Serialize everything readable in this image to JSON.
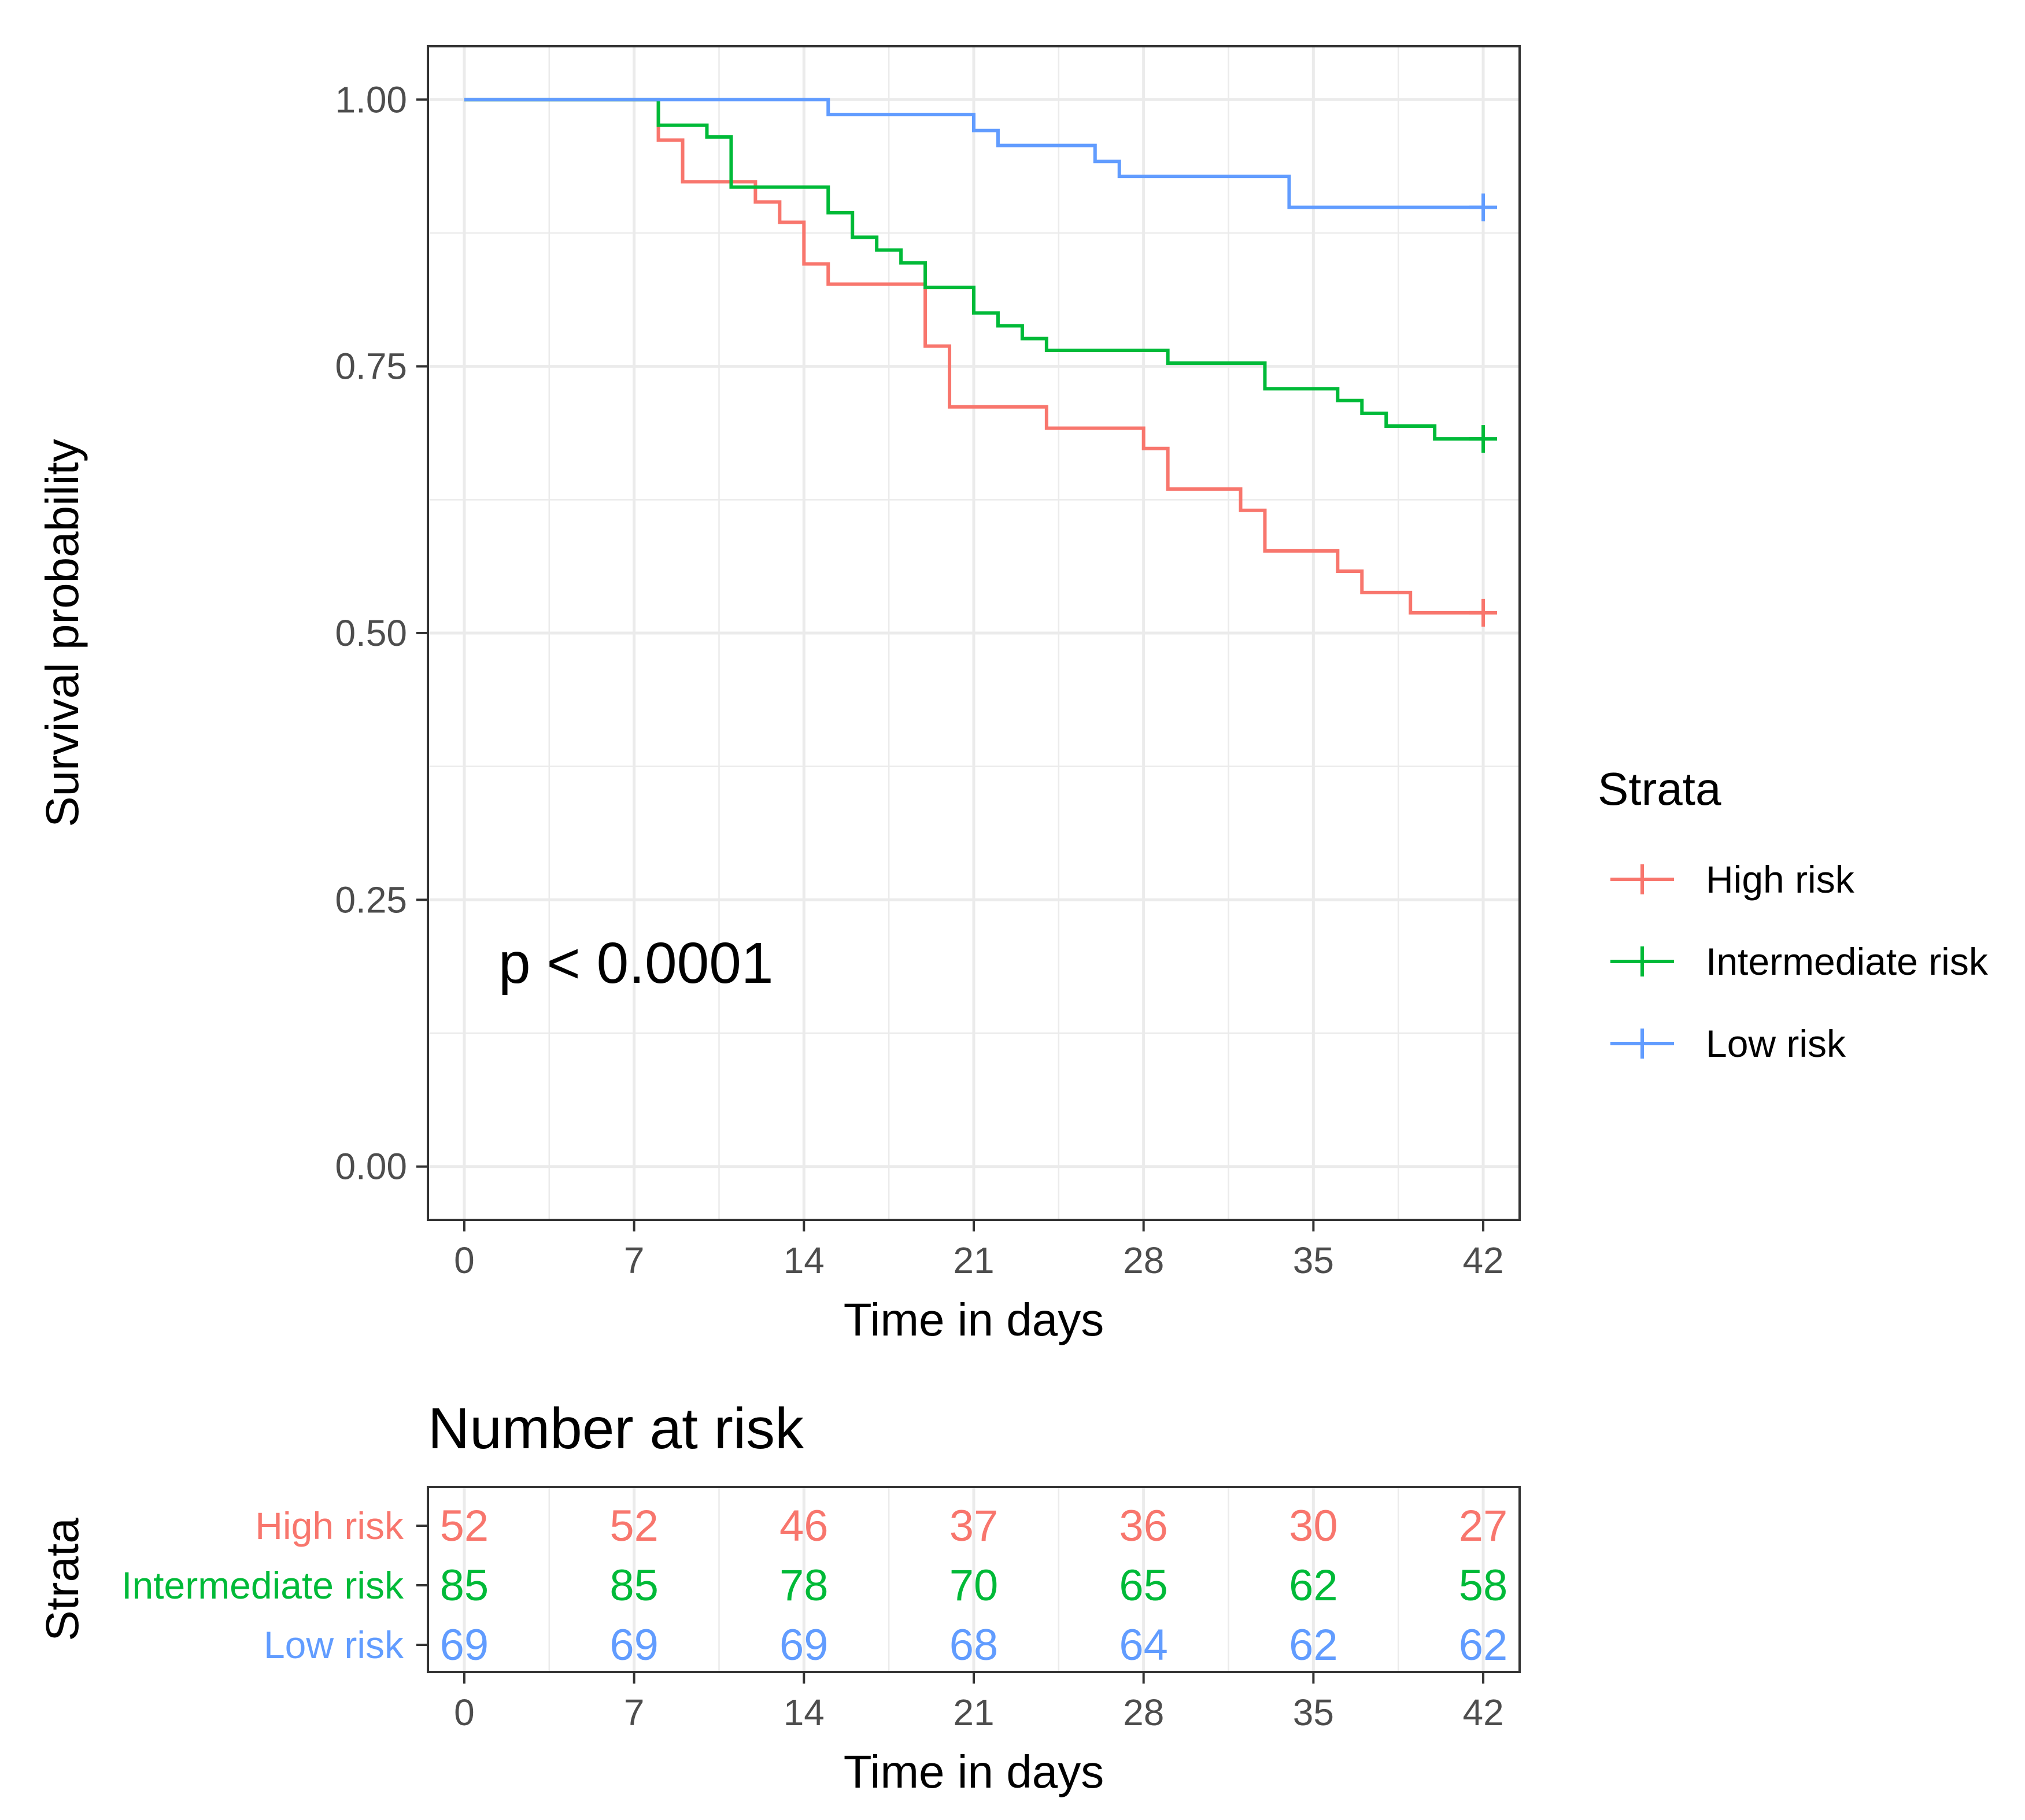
{
  "chart_data": [
    {
      "type": "line",
      "subtype": "kaplan-meier-step",
      "title": "",
      "xlabel": "Time in days",
      "ylabel": "Survival probability",
      "xlim": [
        -1.5,
        43.5
      ],
      "ylim": [
        -0.05,
        1.05
      ],
      "x_ticks": [
        0,
        7,
        14,
        21,
        28,
        35,
        42
      ],
      "x_tick_labels": [
        "0",
        "7",
        "14",
        "21",
        "28",
        "35",
        "42"
      ],
      "y_ticks": [
        0,
        0.25,
        0.5,
        0.75,
        1.0
      ],
      "y_tick_labels": [
        "0.00",
        "0.25",
        "0.50",
        "0.75",
        "1.00"
      ],
      "grid": true,
      "annotation": "p < 0.0001",
      "legend": {
        "title": "Strata",
        "position": "right",
        "entries": [
          "High risk",
          "Intermediate risk",
          "Low risk"
        ]
      },
      "series": [
        {
          "name": "High risk",
          "color": "#F8766D",
          "x": [
            0,
            8,
            9,
            11,
            12,
            13,
            14,
            15,
            19,
            20,
            24,
            28,
            29,
            32,
            33,
            36,
            37,
            39,
            42
          ],
          "y": [
            1.0,
            0.962,
            0.923,
            0.923,
            0.904,
            0.885,
            0.846,
            0.827,
            0.769,
            0.712,
            0.692,
            0.673,
            0.635,
            0.615,
            0.577,
            0.558,
            0.538,
            0.519,
            0.519
          ],
          "censored": [
            {
              "x": 42,
              "y": 0.519
            }
          ]
        },
        {
          "name": "Intermediate risk",
          "color": "#00BA38",
          "x": [
            0,
            8,
            10,
            11,
            15,
            16,
            17,
            18,
            19,
            21,
            22,
            23,
            24,
            29,
            33,
            36,
            37,
            38,
            40,
            42
          ],
          "y": [
            1.0,
            0.976,
            0.965,
            0.918,
            0.894,
            0.871,
            0.859,
            0.847,
            0.824,
            0.8,
            0.788,
            0.776,
            0.765,
            0.753,
            0.729,
            0.718,
            0.706,
            0.694,
            0.682,
            0.682
          ],
          "censored": [
            {
              "x": 42,
              "y": 0.682
            }
          ]
        },
        {
          "name": "Low risk",
          "color": "#619CFF",
          "x": [
            0,
            15,
            21,
            22,
            26,
            27,
            34,
            42
          ],
          "y": [
            1.0,
            0.986,
            0.971,
            0.957,
            0.942,
            0.928,
            0.899,
            0.899
          ],
          "censored": [
            {
              "x": 42,
              "y": 0.899
            }
          ]
        }
      ]
    },
    {
      "type": "table",
      "title": "Number at risk",
      "xlabel": "Time in days",
      "ylabel": "Strata",
      "xlim": [
        -1.5,
        43.5
      ],
      "x_ticks": [
        0,
        7,
        14,
        21,
        28,
        35,
        42
      ],
      "x_tick_labels": [
        "0",
        "7",
        "14",
        "21",
        "28",
        "35",
        "42"
      ],
      "rows": [
        {
          "name": "High risk",
          "color": "#F8766D",
          "values": [
            "52",
            "52",
            "46",
            "37",
            "36",
            "30",
            "27"
          ]
        },
        {
          "name": "Intermediate risk",
          "color": "#00BA38",
          "values": [
            "85",
            "85",
            "78",
            "70",
            "65",
            "62",
            "58"
          ]
        },
        {
          "name": "Low risk",
          "color": "#619CFF",
          "values": [
            "69",
            "69",
            "69",
            "68",
            "64",
            "62",
            "62"
          ]
        }
      ]
    }
  ]
}
